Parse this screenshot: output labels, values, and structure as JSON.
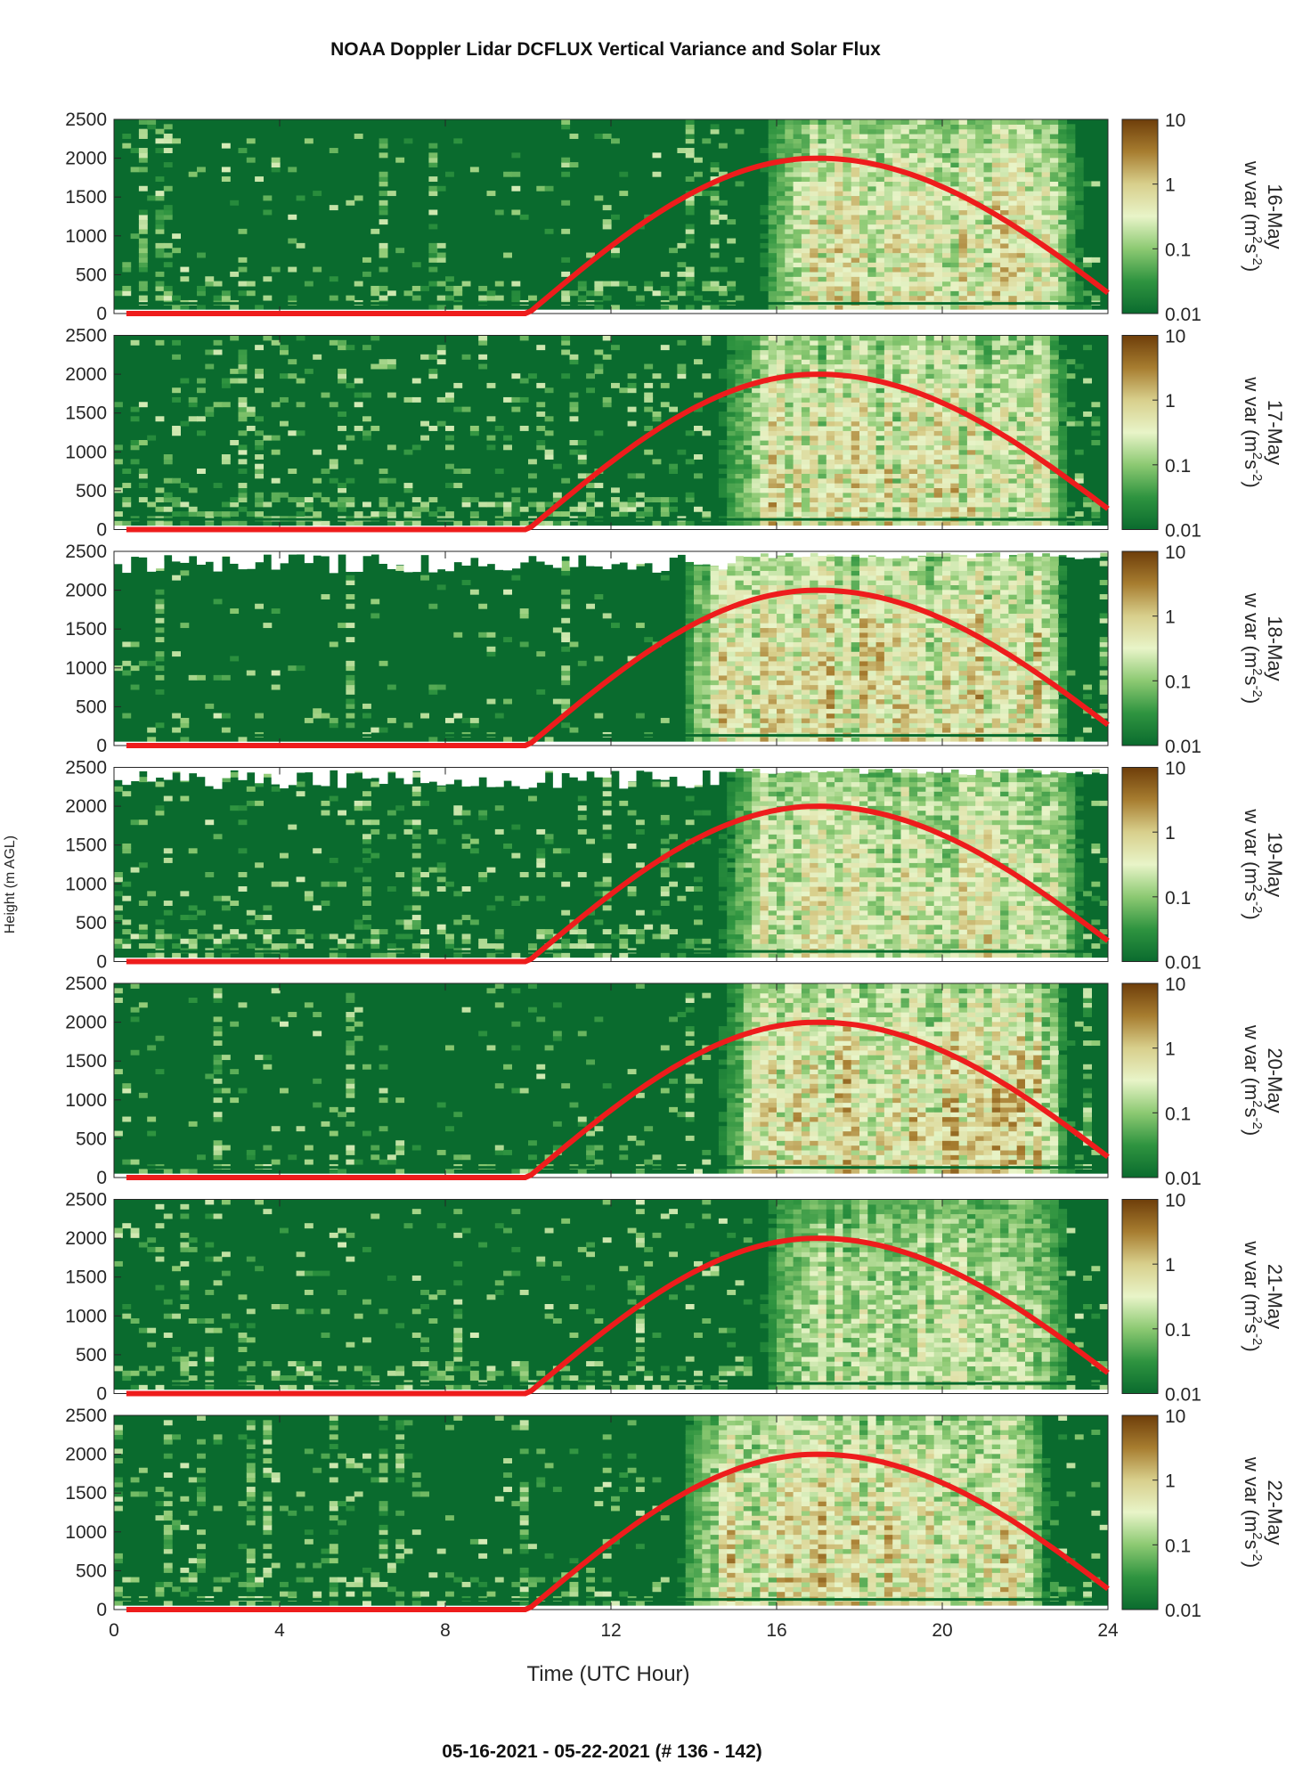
{
  "title": "NOAA Doppler Lidar DCFLUX Vertical Variance and Solar Flux",
  "footer": "05-16-2021 - 05-22-2021   (# 136 - 142)",
  "chart_data": {
    "type": "heatmap",
    "title": "NOAA Doppler Lidar DCFLUX Vertical Variance and Solar Flux",
    "xlabel": "Time (UTC Hour)",
    "ylabel": "Height (m AGL)",
    "xlim": [
      0,
      24
    ],
    "ylim": [
      0,
      2500
    ],
    "x_ticks": [
      "0",
      "4",
      "8",
      "12",
      "16",
      "20",
      "24"
    ],
    "x_tick_values": [
      0,
      4,
      8,
      12,
      16,
      20,
      24
    ],
    "y_ticks": [
      "0",
      "500",
      "1000",
      "1500",
      "2000",
      "2500"
    ],
    "y_tick_values": [
      0,
      500,
      1000,
      1500,
      2000,
      2500
    ],
    "colorbar": {
      "label_main": "w var (m",
      "label_sup1": "2",
      "label_mid": "s",
      "label_sup2": "-2",
      "label_end": ")",
      "scale": "log",
      "range": [
        0.01,
        10
      ],
      "ticks": [
        "0.01",
        "0.1",
        "1",
        "10"
      ],
      "tick_values": [
        0.01,
        0.1,
        1,
        10
      ],
      "colors": [
        "#0a6b2e",
        "#2f9440",
        "#8cc972",
        "#e8f4c8",
        "#d8cf8c",
        "#a77d30",
        "#6e3e0a"
      ]
    },
    "solar_flux_curve": {
      "color": "#ee1c1c",
      "sunrise_hour": 10,
      "sunset_hour": 24,
      "peak_hour": 17,
      "peak_height_equivalent": 2000,
      "night_height_equivalent": 0
    },
    "panels": [
      {
        "day": "16-May",
        "active_start": 15.5,
        "active_end": 23.3,
        "intensity": 0.85,
        "night_level": 0.25,
        "top_gap": false
      },
      {
        "day": "17-May",
        "active_start": 14.5,
        "active_end": 23.0,
        "intensity": 0.85,
        "night_level": 0.45,
        "top_gap": false
      },
      {
        "day": "18-May",
        "active_start": 13.5,
        "active_end": 23.0,
        "intensity": 0.9,
        "night_level": 0.15,
        "top_gap": true
      },
      {
        "day": "19-May",
        "active_start": 14.5,
        "active_end": 23.3,
        "intensity": 0.8,
        "night_level": 0.35,
        "top_gap": true
      },
      {
        "day": "20-May",
        "active_start": 14.5,
        "active_end": 23.0,
        "intensity": 0.95,
        "night_level": 0.2,
        "top_gap": false
      },
      {
        "day": "21-May",
        "active_start": 15.5,
        "active_end": 23.0,
        "intensity": 0.7,
        "night_level": 0.3,
        "top_gap": false
      },
      {
        "day": "22-May",
        "active_start": 13.5,
        "active_end": 22.5,
        "intensity": 0.9,
        "night_level": 0.25,
        "top_gap": false
      }
    ]
  }
}
